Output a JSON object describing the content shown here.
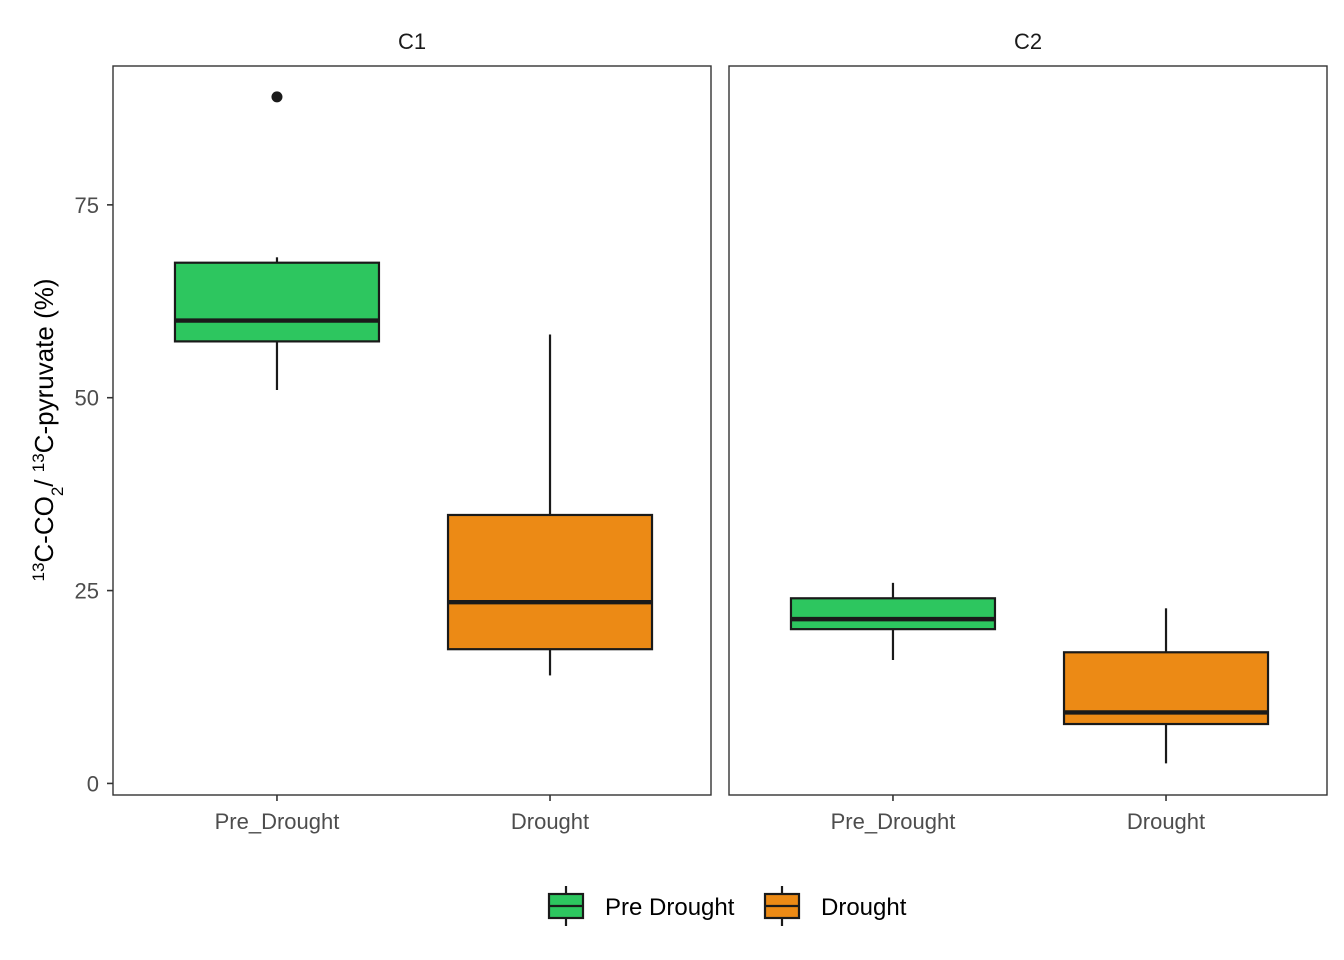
{
  "chart_data": {
    "type": "boxplot",
    "facets": [
      "C1",
      "C2"
    ],
    "categories": [
      "Pre_Drought",
      "Drought"
    ],
    "ylabel": {
      "parts": [
        {
          "text": "13",
          "sup": true
        },
        {
          "text": "C-CO",
          "sup": false
        },
        {
          "text": "2",
          "sub": true
        },
        {
          "text": "/ ",
          "sup": false
        },
        {
          "text": "13",
          "sup": true
        },
        {
          "text": "C-pyruvate (%)",
          "sup": false
        }
      ]
    },
    "ylim": [
      -1.5,
      93
    ],
    "yticks": [
      0,
      25,
      50,
      75
    ],
    "ytick_labels": [
      "0",
      "25",
      "50",
      "75"
    ],
    "grid": false,
    "legend": {
      "position": "bottom",
      "entries": [
        {
          "label": "Pre Drought",
          "color": "#2DC65F"
        },
        {
          "label": "Drought",
          "color": "#EC8A15"
        }
      ]
    },
    "series": [
      {
        "facet": "C1",
        "boxes": [
          {
            "category": "Pre_Drought",
            "color": "#2DC65F",
            "min": 51,
            "q1": 57.3,
            "median": 60,
            "q3": 67.5,
            "max": 68.2,
            "outliers": [
              89
            ]
          },
          {
            "category": "Drought",
            "color": "#EC8A15",
            "min": 14,
            "q1": 17.4,
            "median": 23.5,
            "q3": 34.8,
            "max": 58.2,
            "outliers": []
          }
        ]
      },
      {
        "facet": "C2",
        "boxes": [
          {
            "category": "Pre_Drought",
            "color": "#2DC65F",
            "min": 16,
            "q1": 20,
            "median": 21.3,
            "q3": 24,
            "max": 26,
            "outliers": []
          },
          {
            "category": "Drought",
            "color": "#EC8A15",
            "min": 2.6,
            "q1": 7.7,
            "median": 9.2,
            "q3": 17,
            "max": 22.7,
            "outliers": []
          }
        ]
      }
    ]
  }
}
